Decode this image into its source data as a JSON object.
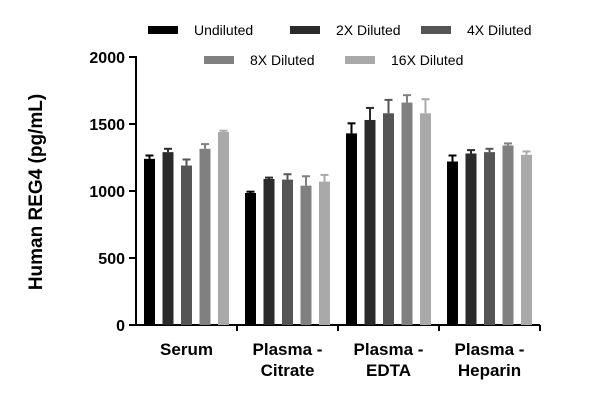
{
  "chart_data": {
    "type": "bar",
    "ylabel": "Human REG4 (pg/mL)",
    "ylim": [
      0,
      2000
    ],
    "yticks": [
      0,
      500,
      1000,
      1500,
      2000
    ],
    "categories": [
      [
        "Serum"
      ],
      [
        "Plasma -",
        "Citrate"
      ],
      [
        "Plasma -",
        "EDTA"
      ],
      [
        "Plasma -",
        "Heparin"
      ]
    ],
    "series": [
      {
        "name": "Undiluted",
        "color": "#000000",
        "values": [
          1240,
          985,
          1430,
          1220
        ],
        "errors": [
          25,
          10,
          75,
          45
        ]
      },
      {
        "name": "2X Diluted",
        "color": "#2b2b2b",
        "values": [
          1290,
          1090,
          1530,
          1280
        ],
        "errors": [
          25,
          10,
          90,
          25
        ]
      },
      {
        "name": "4X Diluted",
        "color": "#555555",
        "values": [
          1190,
          1085,
          1580,
          1290
        ],
        "errors": [
          45,
          40,
          100,
          25
        ]
      },
      {
        "name": "8X Diluted",
        "color": "#808080",
        "values": [
          1315,
          1040,
          1660,
          1340
        ],
        "errors": [
          35,
          70,
          55,
          15
        ]
      },
      {
        "name": "16X Diluted",
        "color": "#a9a9a9",
        "values": [
          1440,
          1070,
          1580,
          1270
        ],
        "errors": [
          10,
          50,
          105,
          25
        ]
      }
    ],
    "legend_position": "top"
  }
}
